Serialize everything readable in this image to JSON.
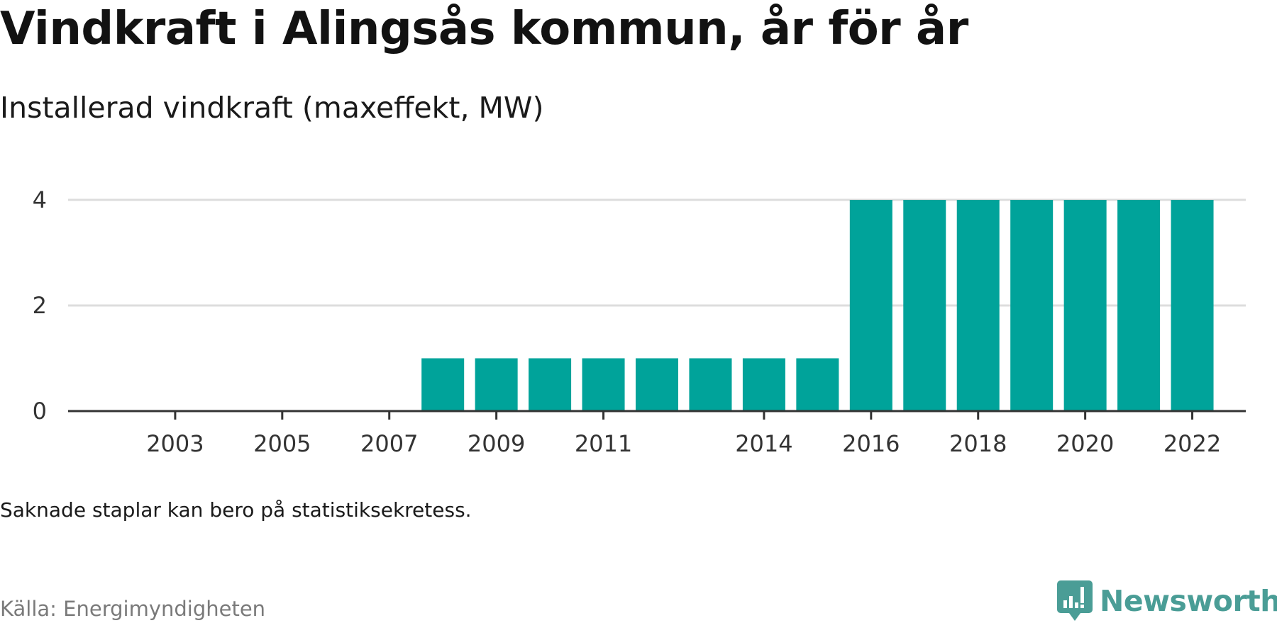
{
  "header": {
    "title": "Vindkraft i Alingsås kommun, år för år",
    "subtitle": "Installerad vindkraft (maxeffekt, MW)"
  },
  "footer": {
    "note": "Saknade staplar kan bero på statistiksekretess.",
    "source": "Källa: Energimyndigheten",
    "brand": "Newsworthy",
    "brand_icon": "chart-bubble-icon"
  },
  "colors": {
    "bar": "#00a39a",
    "grid": "#dddddd",
    "axis": "#333333",
    "brand": "#4a9d96"
  },
  "chart_data": {
    "type": "bar",
    "categories": [
      "2002",
      "2003",
      "2004",
      "2005",
      "2006",
      "2007",
      "2008",
      "2009",
      "2010",
      "2011",
      "2012",
      "2013",
      "2014",
      "2015",
      "2016",
      "2017",
      "2018",
      "2019",
      "2020",
      "2021",
      "2022"
    ],
    "x_tick_labels": [
      "2003",
      "2005",
      "2007",
      "2009",
      "2011",
      "2014",
      "2016",
      "2018",
      "2020",
      "2022"
    ],
    "values": [
      0,
      0,
      0,
      0,
      0,
      0,
      1,
      1,
      1,
      1,
      1,
      1,
      1,
      1,
      4,
      4,
      4,
      4,
      4,
      4,
      4
    ],
    "yticks": [
      0,
      2,
      4
    ],
    "ylim": [
      0,
      4
    ],
    "grid": true
  }
}
